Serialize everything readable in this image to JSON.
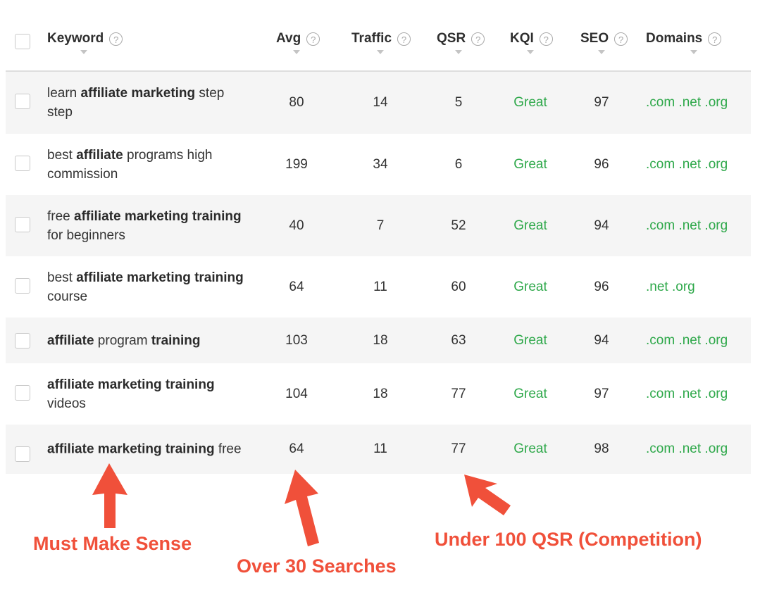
{
  "header": {
    "columns": [
      {
        "key": "keyword",
        "label": "Keyword"
      },
      {
        "key": "avg",
        "label": "Avg"
      },
      {
        "key": "traffic",
        "label": "Traffic"
      },
      {
        "key": "qsr",
        "label": "QSR"
      },
      {
        "key": "kqi",
        "label": "KQI"
      },
      {
        "key": "seo",
        "label": "SEO"
      },
      {
        "key": "domains",
        "label": "Domains"
      }
    ],
    "help_glyph": "?"
  },
  "rows": [
    {
      "keyword": [
        {
          "t": "learn ",
          "b": false
        },
        {
          "t": "affiliate marketing",
          "b": true
        },
        {
          "t": " step step",
          "b": false
        }
      ],
      "avg": "80",
      "traffic": "14",
      "qsr": "5",
      "kqi": "Great",
      "seo": "97",
      "domains": ".com .net .org"
    },
    {
      "keyword": [
        {
          "t": "best ",
          "b": false
        },
        {
          "t": "affiliate",
          "b": true
        },
        {
          "t": " programs high commission",
          "b": false
        }
      ],
      "avg": "199",
      "traffic": "34",
      "qsr": "6",
      "kqi": "Great",
      "seo": "96",
      "domains": ".com .net .org"
    },
    {
      "keyword": [
        {
          "t": "free ",
          "b": false
        },
        {
          "t": "affiliate marketing training",
          "b": true
        },
        {
          "t": " for beginners",
          "b": false
        }
      ],
      "avg": "40",
      "traffic": "7",
      "qsr": "52",
      "kqi": "Great",
      "seo": "94",
      "domains": ".com .net .org"
    },
    {
      "keyword": [
        {
          "t": "best ",
          "b": false
        },
        {
          "t": "affiliate marketing training",
          "b": true
        },
        {
          "t": " course",
          "b": false
        }
      ],
      "avg": "64",
      "traffic": "11",
      "qsr": "60",
      "kqi": "Great",
      "seo": "96",
      "domains": ".net .org"
    },
    {
      "keyword": [
        {
          "t": "affiliate",
          "b": true
        },
        {
          "t": " program ",
          "b": false
        },
        {
          "t": "training",
          "b": true
        }
      ],
      "avg": "103",
      "traffic": "18",
      "qsr": "63",
      "kqi": "Great",
      "seo": "94",
      "domains": ".com .net .org"
    },
    {
      "keyword": [
        {
          "t": "affiliate marketing training",
          "b": true
        },
        {
          "t": " videos",
          "b": false
        }
      ],
      "avg": "104",
      "traffic": "18",
      "qsr": "77",
      "kqi": "Great",
      "seo": "97",
      "domains": ".com .net .org"
    },
    {
      "keyword": [
        {
          "t": "affiliate marketing training",
          "b": true
        },
        {
          "t": " free",
          "b": false
        }
      ],
      "avg": "64",
      "traffic": "11",
      "qsr": "77",
      "kqi": "Great",
      "seo": "98",
      "domains": ".com .net .org"
    }
  ],
  "annotations": {
    "keyword": "Must Make Sense",
    "avg": "Over 30 Searches",
    "qsr": "Under 100 QSR (Competition)"
  },
  "colors": {
    "great": "#2ea84a",
    "annotation": "#f0503a",
    "row_alt": "#f5f5f5"
  }
}
